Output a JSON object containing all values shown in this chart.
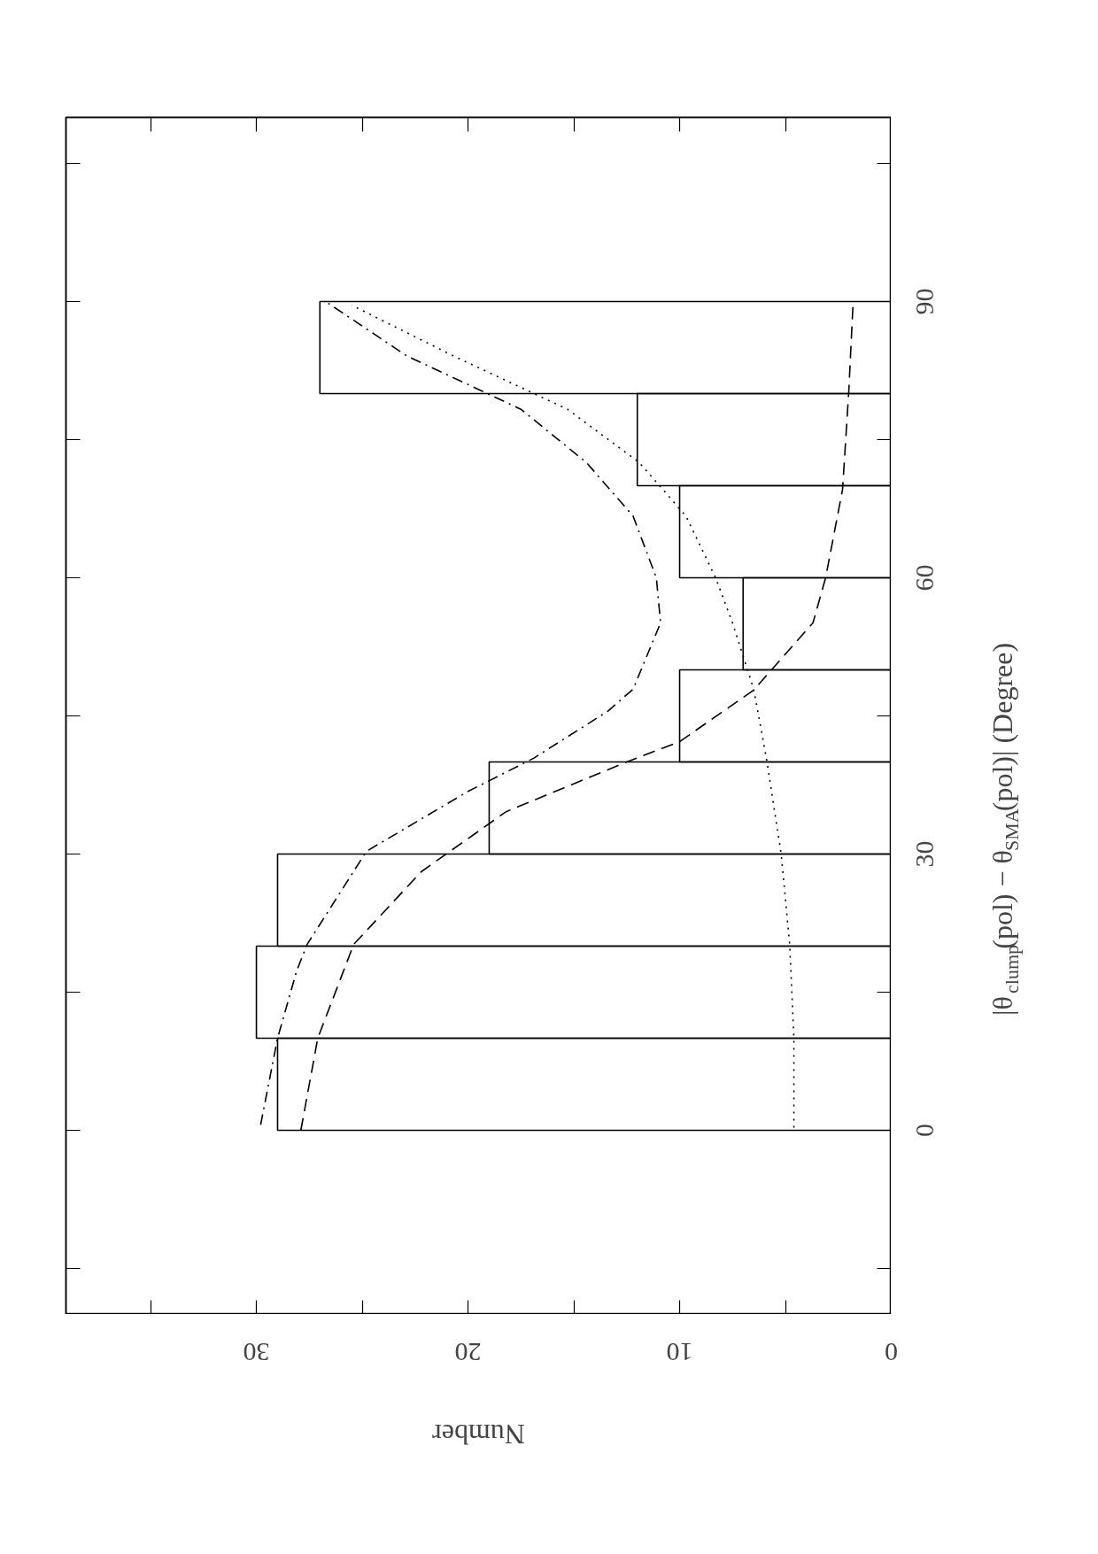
{
  "chart_data": {
    "type": "histogram",
    "orientation": "horizontal",
    "xlabel": "Number",
    "ylabel": "|θ$_{clump}$(pol) − θ$_{SMA}$(pol)| (Degree)",
    "bins": [
      0,
      10,
      20,
      30,
      40,
      50,
      60,
      70,
      80,
      90
    ],
    "values": [
      29,
      30,
      29,
      19,
      10,
      7,
      10,
      12,
      27
    ],
    "color": "#000000",
    "xlim": [
      39,
      0
    ],
    "xticks": [
      0,
      10,
      20,
      30,
      {
        "value": 5,
        "label": null
      },
      {
        "value": 15,
        "label": null
      },
      {
        "value": 25,
        "label": null
      },
      {
        "value": 35,
        "label": null
      }
    ],
    "ylim": [
      -20,
      110
    ],
    "yticks": [
      0,
      30,
      60,
      90,
      {
        "value": -15,
        "label": null
      },
      {
        "value": 15,
        "label": null
      },
      {
        "value": 45,
        "label": null
      },
      {
        "value": 75,
        "label": null
      },
      {
        "value": 105,
        "label": null
      }
    ],
    "grid": false,
    "series": [
      {
        "type": "line",
        "color": "#000000",
        "line_style": "dashed",
        "x": [
          0,
          10,
          20.2,
          28.1,
          34.6,
          40,
          42.2,
          47.8,
          55.1,
          60,
          69.6,
          80.5,
          90
        ],
        "values": [
          27.9,
          27.1,
          25.4,
          22.2,
          18.2,
          12.5,
          10,
          6.5,
          3.7,
          3.1,
          2.3,
          2.0,
          1.8
        ]
      },
      {
        "type": "line",
        "color": "#000000",
        "line_style": "dashdot",
        "x": [
          0.6,
          10,
          17.3,
          20.2,
          30.3,
          36.8,
          40.4,
          45.5,
          47.9,
          55.1,
          60,
          66.7,
          72.5,
          78.3,
          84.1,
          89.8
        ],
        "values": [
          29.8,
          29,
          28.1,
          27.6,
          24.8,
          20,
          16.9,
          13.4,
          12.2,
          10.9,
          11.1,
          12.2,
          14.4,
          17.5,
          22.9,
          26.6
        ]
      },
      {
        "type": "line",
        "color": "#000000",
        "line_style": "dotted",
        "x": [
          0.3,
          10,
          20.2,
          30,
          40.4,
          47.9,
          55.1,
          60,
          66.7,
          72.5,
          78.3,
          84.1,
          89.6
        ],
        "values": [
          4.6,
          4.6,
          4.8,
          5.2,
          5.9,
          6.5,
          7.5,
          8.3,
          9.7,
          11.9,
          15.3,
          20.7,
          25.5
        ]
      }
    ]
  }
}
